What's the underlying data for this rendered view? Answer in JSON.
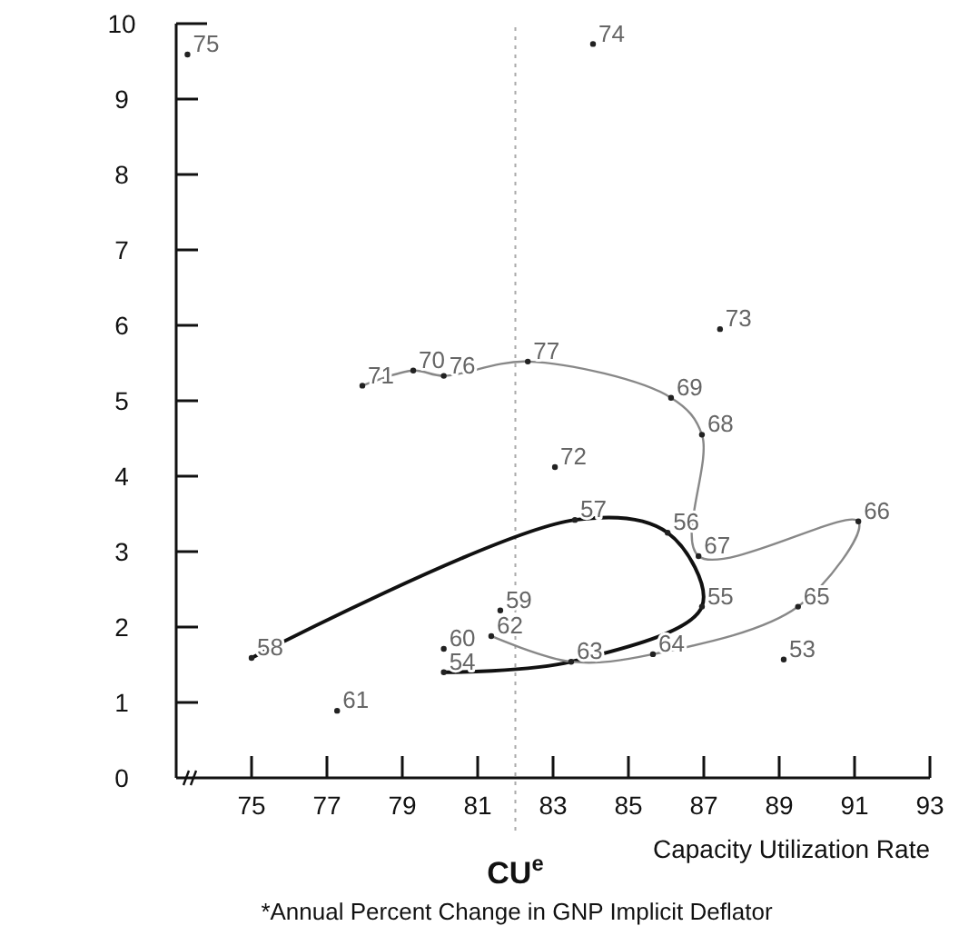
{
  "chart_data": {
    "type": "scatter",
    "xlabel": "Capacity Utilization Rate",
    "xlim": [
      73,
      93
    ],
    "xticks": [
      75,
      77,
      79,
      81,
      83,
      85,
      87,
      89,
      91,
      93
    ],
    "ylim": [
      0,
      10
    ],
    "yticks": [
      0,
      1,
      2,
      3,
      4,
      5,
      6,
      7,
      8,
      9,
      10
    ],
    "grid": false,
    "series": [
      {
        "color": "#222222",
        "marker": "circle",
        "x": [
          73.3,
          84.06,
          87.43,
          82.33,
          86.13,
          86.95,
          83.05,
          79.29,
          80.1,
          77.94,
          83.58,
          86.04,
          86.86,
          91.1,
          86.95,
          89.5,
          81.6,
          81.36,
          80.1,
          80.1,
          83.48,
          85.65,
          89.12,
          75,
          77.27
        ],
        "values": [
          9.59,
          9.73,
          5.95,
          5.52,
          5.04,
          4.55,
          4.12,
          5.4,
          5.33,
          5.2,
          3.42,
          3.25,
          2.94,
          3.4,
          2.27,
          2.27,
          2.22,
          1.88,
          1.71,
          1.4,
          1.54,
          1.64,
          1.57,
          1.59,
          0.89
        ]
      },
      {
        "type": "line",
        "color": "#111111",
        "x": [
          75,
          83.58,
          86.04,
          86.95,
          83.48,
          80.1
        ],
        "values": [
          1.59,
          3.42,
          3.25,
          2.27,
          1.54,
          1.4
        ]
      },
      {
        "type": "line",
        "color": "#888888",
        "x": [
          81.36,
          83.48,
          85.65,
          89.5,
          91.1,
          86.86,
          86.95,
          86.13,
          82.33,
          80.1,
          79.29,
          77.94
        ],
        "values": [
          1.88,
          1.54,
          1.64,
          2.27,
          3.4,
          2.94,
          4.55,
          5.04,
          5.52,
          5.33,
          5.4,
          5.2
        ]
      }
    ],
    "ref_lines": [
      {
        "axis": "x",
        "value": 82,
        "label": "CU$^{e}$",
        "color": "#aaaaaa",
        "line_style": "dotted"
      }
    ],
    "annotations": [
      {
        "text": "75",
        "x": 73.3,
        "y": 9.59
      },
      {
        "text": "74",
        "x": 84.06,
        "y": 9.73
      },
      {
        "text": "73",
        "x": 87.43,
        "y": 5.95
      },
      {
        "text": "77",
        "x": 82.33,
        "y": 5.52
      },
      {
        "text": "69",
        "x": 86.13,
        "y": 5.04
      },
      {
        "text": "68",
        "x": 86.95,
        "y": 4.55
      },
      {
        "text": "72",
        "x": 83.05,
        "y": 4.12
      },
      {
        "text": "70",
        "x": 79.29,
        "y": 5.4
      },
      {
        "text": "76",
        "x": 80.1,
        "y": 5.33
      },
      {
        "text": "71",
        "x": 77.94,
        "y": 5.2
      },
      {
        "text": "57",
        "x": 83.58,
        "y": 3.42
      },
      {
        "text": "56",
        "x": 86.04,
        "y": 3.25
      },
      {
        "text": "67",
        "x": 86.86,
        "y": 2.94
      },
      {
        "text": "66",
        "x": 91.1,
        "y": 3.4
      },
      {
        "text": "55",
        "x": 86.95,
        "y": 2.27
      },
      {
        "text": "65",
        "x": 89.5,
        "y": 2.27
      },
      {
        "text": "59",
        "x": 81.6,
        "y": 2.22
      },
      {
        "text": "62",
        "x": 81.36,
        "y": 1.88
      },
      {
        "text": "60",
        "x": 80.1,
        "y": 1.71
      },
      {
        "text": "54",
        "x": 80.1,
        "y": 1.4
      },
      {
        "text": "63",
        "x": 83.48,
        "y": 1.54
      },
      {
        "text": "64",
        "x": 85.65,
        "y": 1.64
      },
      {
        "text": "53",
        "x": 89.12,
        "y": 1.57
      },
      {
        "text": "58",
        "x": 75,
        "y": 1.59
      },
      {
        "text": "61",
        "x": 77.27,
        "y": 0.89
      },
      "*Annual Percent Change in GNP Implicit Deflator"
    ]
  }
}
